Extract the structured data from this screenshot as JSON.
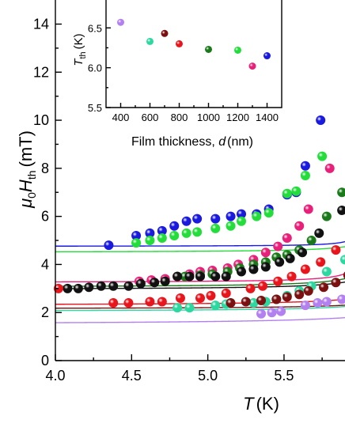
{
  "main": {
    "type": "scatter",
    "xlabel_var": "T",
    "xlabel_unit": "(K)",
    "ylabel_prefix": "μ",
    "ylabel_sub0": "0",
    "ylabel_var": "H",
    "ylabel_sub": "th",
    "ylabel_unit": "(mT)",
    "xlim": [
      4.0,
      5.9
    ],
    "ylim": [
      0,
      15.2
    ],
    "xticks": [
      4.0,
      4.5,
      5.0,
      5.5
    ],
    "xtick_labels": [
      "4.0",
      "4.5",
      "5.0",
      "5.5"
    ],
    "yticks": [
      0,
      2,
      4,
      6,
      8,
      10,
      12,
      14
    ],
    "ytick_labels": [
      "0",
      "2",
      "4",
      "6",
      "8",
      "10",
      "12",
      "14"
    ],
    "series": [
      {
        "color": "#1a1adf",
        "points": [
          [
            4.35,
            4.8
          ],
          [
            4.53,
            5.2
          ],
          [
            4.62,
            5.3
          ],
          [
            4.7,
            5.4
          ],
          [
            4.78,
            5.6
          ],
          [
            4.86,
            5.8
          ],
          [
            4.93,
            5.9
          ],
          [
            5.05,
            5.9
          ],
          [
            5.15,
            6.0
          ],
          [
            5.22,
            6.1
          ],
          [
            5.32,
            6.1
          ],
          [
            5.4,
            6.3
          ],
          [
            5.52,
            6.9
          ],
          [
            5.58,
            7.0
          ],
          [
            5.64,
            8.1
          ],
          [
            5.74,
            10.0
          ]
        ],
        "fit": {
          "A": 4.75,
          "B": 0.024,
          "Tc": 6.02
        }
      },
      {
        "color": "#22dd3a",
        "points": [
          [
            4.53,
            4.9
          ],
          [
            4.62,
            5.0
          ],
          [
            4.7,
            5.1
          ],
          [
            4.78,
            5.2
          ],
          [
            4.86,
            5.3
          ],
          [
            4.93,
            5.35
          ],
          [
            5.05,
            5.5
          ],
          [
            5.15,
            5.6
          ],
          [
            5.22,
            5.8
          ],
          [
            5.32,
            6.0
          ],
          [
            5.4,
            6.15
          ],
          [
            5.52,
            6.95
          ],
          [
            5.58,
            7.05
          ],
          [
            5.64,
            7.7
          ],
          [
            5.75,
            8.5
          ]
        ],
        "fit": {
          "A": 4.5,
          "B": 0.06,
          "Tc": 6.15
        }
      },
      {
        "color": "#e8207a",
        "points": [
          [
            4.55,
            3.3
          ],
          [
            4.63,
            3.35
          ],
          [
            4.72,
            3.4
          ],
          [
            4.8,
            3.5
          ],
          [
            4.88,
            3.6
          ],
          [
            4.95,
            3.7
          ],
          [
            5.03,
            3.75
          ],
          [
            5.13,
            3.85
          ],
          [
            5.2,
            4.0
          ],
          [
            5.3,
            4.2
          ],
          [
            5.38,
            4.5
          ],
          [
            5.46,
            4.75
          ],
          [
            5.52,
            5.1
          ],
          [
            5.6,
            5.6
          ],
          [
            5.66,
            6.3
          ],
          [
            5.8,
            8.0
          ]
        ],
        "fit": {
          "A": 3.25,
          "B": 0.055,
          "Tc": 6.05
        }
      },
      {
        "color": "#1a7a1a",
        "points": [
          [
            4.85,
            3.5
          ],
          [
            4.95,
            3.55
          ],
          [
            5.03,
            3.6
          ],
          [
            5.13,
            3.7
          ],
          [
            5.21,
            3.85
          ],
          [
            5.3,
            4.0
          ],
          [
            5.38,
            4.1
          ],
          [
            5.45,
            4.3
          ],
          [
            5.52,
            4.4
          ],
          [
            5.6,
            4.6
          ],
          [
            5.68,
            5.0
          ],
          [
            5.78,
            6.0
          ],
          [
            5.88,
            7.0
          ]
        ],
        "fit": {
          "A": 3.05,
          "B": 0.09,
          "Tc": 6.15
        }
      },
      {
        "color": "#111111",
        "points": [
          [
            4.08,
            3.0
          ],
          [
            4.15,
            3.0
          ],
          [
            4.22,
            3.05
          ],
          [
            4.3,
            3.1
          ],
          [
            4.38,
            3.1
          ],
          [
            4.48,
            3.1
          ],
          [
            4.56,
            3.2
          ],
          [
            4.65,
            3.25
          ],
          [
            4.72,
            3.3
          ],
          [
            4.8,
            3.5
          ],
          [
            4.88,
            3.5
          ],
          [
            4.95,
            3.5
          ],
          [
            5.05,
            3.5
          ],
          [
            5.12,
            3.5
          ],
          [
            5.22,
            3.7
          ],
          [
            5.3,
            3.8
          ],
          [
            5.38,
            3.9
          ],
          [
            5.47,
            4.1
          ],
          [
            5.54,
            4.25
          ],
          [
            5.62,
            4.5
          ],
          [
            5.73,
            5.3
          ],
          [
            5.88,
            6.25
          ]
        ],
        "fit": {
          "A": 2.95,
          "B": 0.095,
          "Tc": 6.2
        }
      },
      {
        "color": "#e8151d",
        "points": [
          [
            4.02,
            3.0
          ],
          [
            4.38,
            2.4
          ],
          [
            4.48,
            2.4
          ],
          [
            4.62,
            2.45
          ],
          [
            4.7,
            2.45
          ],
          [
            4.82,
            2.6
          ],
          [
            4.95,
            2.6
          ],
          [
            5.02,
            2.7
          ],
          [
            5.12,
            2.8
          ],
          [
            5.28,
            3.0
          ],
          [
            5.36,
            3.1
          ],
          [
            5.46,
            3.3
          ],
          [
            5.55,
            3.5
          ],
          [
            5.64,
            3.8
          ],
          [
            5.74,
            4.1
          ],
          [
            5.84,
            4.6
          ]
        ],
        "fit": {
          "A": 2.3,
          "B": 0.1,
          "Tc": 6.3
        }
      },
      {
        "color": "#2bd9a0",
        "points": [
          [
            4.8,
            2.2
          ],
          [
            4.88,
            2.2
          ],
          [
            5.05,
            2.3
          ],
          [
            5.12,
            2.35
          ],
          [
            5.3,
            2.4
          ],
          [
            5.38,
            2.45
          ],
          [
            5.45,
            2.55
          ],
          [
            5.52,
            2.7
          ],
          [
            5.6,
            2.9
          ],
          [
            5.68,
            3.1
          ],
          [
            5.78,
            3.7
          ],
          [
            5.9,
            4.2
          ]
        ],
        "fit": {
          "A": 2.05,
          "B": 0.08,
          "Tc": 6.3
        }
      },
      {
        "color": "#7a1010",
        "points": [
          [
            5.15,
            2.4
          ],
          [
            5.25,
            2.45
          ],
          [
            5.35,
            2.5
          ],
          [
            5.45,
            2.55
          ],
          [
            5.52,
            2.65
          ],
          [
            5.6,
            2.75
          ],
          [
            5.66,
            2.9
          ],
          [
            5.76,
            3.05
          ],
          [
            5.84,
            3.25
          ],
          [
            5.92,
            3.55
          ]
        ],
        "fit": {
          "A": 2.15,
          "B": 0.07,
          "Tc": 6.35
        }
      },
      {
        "color": "#b380f0",
        "points": [
          [
            5.35,
            1.95
          ],
          [
            5.42,
            2.0
          ],
          [
            5.48,
            2.05
          ],
          [
            5.64,
            2.3
          ],
          [
            5.72,
            2.4
          ],
          [
            5.78,
            2.45
          ],
          [
            5.88,
            2.55
          ]
        ],
        "fit": {
          "A": 1.5,
          "B": 0.2,
          "Tc": 6.6
        }
      }
    ]
  },
  "inset": {
    "type": "scatter",
    "xlabel_text": "Film thickness, ",
    "xlabel_var": "d",
    "xlabel_unit": "(nm)",
    "ylabel_var": "T",
    "ylabel_sub": "th",
    "ylabel_unit": "(K)",
    "xlim": [
      300,
      1500
    ],
    "ylim": [
      5.5,
      6.85
    ],
    "xticks": [
      400,
      600,
      800,
      1000,
      1200,
      1400
    ],
    "xtick_labels": [
      "400",
      "600",
      "800",
      "1000",
      "1200",
      "1400"
    ],
    "yticks": [
      5.5,
      6.0,
      6.5
    ],
    "ytick_labels": [
      "5.5",
      "6.0",
      "6.5"
    ],
    "points": [
      {
        "x": 400,
        "y": 6.57,
        "color": "#b380f0"
      },
      {
        "x": 600,
        "y": 6.33,
        "color": "#2bd9a0"
      },
      {
        "x": 700,
        "y": 6.43,
        "color": "#7a1010"
      },
      {
        "x": 800,
        "y": 6.3,
        "color": "#e8151d"
      },
      {
        "x": 1000,
        "y": 6.23,
        "color": "#1a7a1a"
      },
      {
        "x": 1200,
        "y": 6.22,
        "color": "#22dd3a"
      },
      {
        "x": 1300,
        "y": 6.02,
        "color": "#e8207a"
      },
      {
        "x": 1400,
        "y": 6.15,
        "color": "#1a1adf"
      }
    ]
  }
}
